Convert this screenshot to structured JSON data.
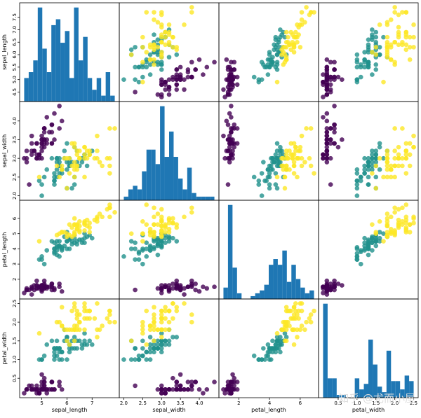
{
  "chart_data": {
    "type": "scatter_matrix",
    "variables": [
      {
        "label": "sepal_length",
        "lim": [
          4.12,
          8.08
        ],
        "xticks": [
          5,
          6,
          7
        ],
        "yticks": [
          4.5,
          {
            "value": 5,
            "label": "5.0"
          },
          5.5,
          {
            "value": 6,
            "label": "6.0"
          },
          6.5,
          {
            "value": 7,
            "label": "7.0"
          },
          7.5
        ]
      },
      {
        "label": "sepal_width",
        "lim": [
          1.88,
          4.52
        ],
        "xticks": [
          {
            "value": 2,
            "label": "2.0"
          },
          2.5,
          {
            "value": 3,
            "label": "3.0"
          },
          3.5,
          {
            "value": 4,
            "label": "4.0"
          }
        ],
        "yticks": [
          {
            "value": 2,
            "label": "2.0"
          },
          2.5,
          {
            "value": 3,
            "label": "3.0"
          },
          3.5,
          {
            "value": 4,
            "label": "4.0"
          }
        ]
      },
      {
        "label": "petal_length",
        "lim": [
          0.705,
          7.195
        ],
        "xticks": [
          2,
          4,
          6
        ],
        "yticks": [
          2,
          3,
          4,
          5,
          6
        ]
      },
      {
        "label": "petal_width",
        "lim": [
          -0.02,
          2.62
        ],
        "xticks": [
          0.5,
          {
            "value": 1,
            "label": "1.0"
          },
          1.5,
          {
            "value": 2,
            "label": "2.0"
          },
          2.5
        ],
        "yticks": [
          0.5,
          {
            "value": 1,
            "label": "1.0"
          },
          1.5,
          {
            "value": 2,
            "label": "2.0"
          },
          2.5
        ]
      }
    ],
    "hist_color": "#1f77b4",
    "hist_bins": 20,
    "series": [
      {
        "color": "#440154",
        "data": [
          [
            5.1,
            3.5,
            1.4,
            0.2
          ],
          [
            4.9,
            3.0,
            1.4,
            0.2
          ],
          [
            4.7,
            3.2,
            1.3,
            0.2
          ],
          [
            4.6,
            3.1,
            1.5,
            0.2
          ],
          [
            5.0,
            3.6,
            1.4,
            0.2
          ],
          [
            5.4,
            3.9,
            1.7,
            0.4
          ],
          [
            4.6,
            3.4,
            1.4,
            0.3
          ],
          [
            5.0,
            3.4,
            1.5,
            0.2
          ],
          [
            4.4,
            2.9,
            1.4,
            0.2
          ],
          [
            4.9,
            3.1,
            1.5,
            0.1
          ],
          [
            5.4,
            3.7,
            1.5,
            0.2
          ],
          [
            4.8,
            3.4,
            1.6,
            0.2
          ],
          [
            4.8,
            3.0,
            1.4,
            0.1
          ],
          [
            4.3,
            3.0,
            1.1,
            0.1
          ],
          [
            5.8,
            4.0,
            1.2,
            0.2
          ],
          [
            5.7,
            4.4,
            1.5,
            0.4
          ],
          [
            5.4,
            3.9,
            1.3,
            0.4
          ],
          [
            5.1,
            3.5,
            1.4,
            0.3
          ],
          [
            5.7,
            3.8,
            1.7,
            0.3
          ],
          [
            5.1,
            3.8,
            1.5,
            0.3
          ],
          [
            5.4,
            3.4,
            1.7,
            0.2
          ],
          [
            5.1,
            3.7,
            1.5,
            0.4
          ],
          [
            4.6,
            3.6,
            1.0,
            0.2
          ],
          [
            5.1,
            3.3,
            1.7,
            0.5
          ],
          [
            4.8,
            3.4,
            1.9,
            0.2
          ],
          [
            5.0,
            3.0,
            1.6,
            0.2
          ],
          [
            5.0,
            3.4,
            1.6,
            0.4
          ],
          [
            5.2,
            3.5,
            1.5,
            0.2
          ],
          [
            5.2,
            3.4,
            1.4,
            0.2
          ],
          [
            4.7,
            3.2,
            1.6,
            0.2
          ],
          [
            4.8,
            3.1,
            1.6,
            0.2
          ],
          [
            5.4,
            3.4,
            1.5,
            0.4
          ],
          [
            5.2,
            4.1,
            1.5,
            0.1
          ],
          [
            5.5,
            4.2,
            1.4,
            0.2
          ],
          [
            4.9,
            3.1,
            1.5,
            0.1
          ],
          [
            5.0,
            3.2,
            1.2,
            0.2
          ],
          [
            5.5,
            3.5,
            1.3,
            0.2
          ],
          [
            4.9,
            3.1,
            1.5,
            0.1
          ],
          [
            4.4,
            3.0,
            1.3,
            0.2
          ],
          [
            5.1,
            3.4,
            1.5,
            0.2
          ],
          [
            5.0,
            3.5,
            1.3,
            0.3
          ],
          [
            4.5,
            2.3,
            1.3,
            0.3
          ],
          [
            4.4,
            3.2,
            1.3,
            0.2
          ],
          [
            5.0,
            3.5,
            1.6,
            0.6
          ],
          [
            5.1,
            3.8,
            1.9,
            0.4
          ],
          [
            4.8,
            3.0,
            1.4,
            0.3
          ],
          [
            5.1,
            3.8,
            1.6,
            0.2
          ],
          [
            4.6,
            3.2,
            1.4,
            0.2
          ],
          [
            5.3,
            3.7,
            1.5,
            0.2
          ],
          [
            5.0,
            3.3,
            1.4,
            0.2
          ]
        ]
      },
      {
        "color": "#21918c",
        "data": [
          [
            7.0,
            3.2,
            4.7,
            1.4
          ],
          [
            6.4,
            3.2,
            4.5,
            1.5
          ],
          [
            6.9,
            3.1,
            4.9,
            1.5
          ],
          [
            5.5,
            2.3,
            4.0,
            1.3
          ],
          [
            6.5,
            2.8,
            4.6,
            1.5
          ],
          [
            5.7,
            2.8,
            4.5,
            1.3
          ],
          [
            6.3,
            3.3,
            4.7,
            1.6
          ],
          [
            4.9,
            2.4,
            3.3,
            1.0
          ],
          [
            6.6,
            2.9,
            4.6,
            1.3
          ],
          [
            5.2,
            2.7,
            3.9,
            1.4
          ],
          [
            5.0,
            2.0,
            3.5,
            1.0
          ],
          [
            5.9,
            3.0,
            4.2,
            1.5
          ],
          [
            6.0,
            2.2,
            4.0,
            1.0
          ],
          [
            6.1,
            2.9,
            4.7,
            1.4
          ],
          [
            5.6,
            2.9,
            3.6,
            1.3
          ],
          [
            6.7,
            3.1,
            4.4,
            1.4
          ],
          [
            5.6,
            3.0,
            4.5,
            1.5
          ],
          [
            5.8,
            2.7,
            4.1,
            1.0
          ],
          [
            6.2,
            2.2,
            4.5,
            1.5
          ],
          [
            5.6,
            2.5,
            3.9,
            1.1
          ],
          [
            5.9,
            3.2,
            4.8,
            1.8
          ],
          [
            6.1,
            2.8,
            4.0,
            1.3
          ],
          [
            6.3,
            2.5,
            4.9,
            1.5
          ],
          [
            6.1,
            2.8,
            4.7,
            1.2
          ],
          [
            6.4,
            2.9,
            4.3,
            1.3
          ],
          [
            6.6,
            3.0,
            4.4,
            1.4
          ],
          [
            6.8,
            2.8,
            4.8,
            1.4
          ],
          [
            6.7,
            3.0,
            5.0,
            1.7
          ],
          [
            6.0,
            2.9,
            4.5,
            1.5
          ],
          [
            5.7,
            2.6,
            3.5,
            1.0
          ],
          [
            5.5,
            2.4,
            3.8,
            1.1
          ],
          [
            5.5,
            2.4,
            3.7,
            1.0
          ],
          [
            5.8,
            2.7,
            3.9,
            1.2
          ],
          [
            6.0,
            2.7,
            5.1,
            1.6
          ],
          [
            5.4,
            3.0,
            4.5,
            1.5
          ],
          [
            6.0,
            3.4,
            4.5,
            1.6
          ],
          [
            6.7,
            3.1,
            4.7,
            1.5
          ],
          [
            6.3,
            2.3,
            4.4,
            1.3
          ],
          [
            5.6,
            3.0,
            4.1,
            1.3
          ],
          [
            5.5,
            2.5,
            4.0,
            1.3
          ],
          [
            5.5,
            2.6,
            4.4,
            1.2
          ],
          [
            6.1,
            3.0,
            4.6,
            1.4
          ],
          [
            5.8,
            2.6,
            4.0,
            1.2
          ],
          [
            5.0,
            2.3,
            3.3,
            1.0
          ],
          [
            5.6,
            2.7,
            4.2,
            1.3
          ],
          [
            5.7,
            3.0,
            4.2,
            1.2
          ],
          [
            5.7,
            2.9,
            4.2,
            1.3
          ],
          [
            6.2,
            2.9,
            4.3,
            1.3
          ],
          [
            5.1,
            2.5,
            3.0,
            1.1
          ],
          [
            5.7,
            2.8,
            4.1,
            1.3
          ]
        ]
      },
      {
        "color": "#fde725",
        "data": [
          [
            6.3,
            3.3,
            6.0,
            2.5
          ],
          [
            5.8,
            2.7,
            5.1,
            1.9
          ],
          [
            7.1,
            3.0,
            5.9,
            2.1
          ],
          [
            6.3,
            2.9,
            5.6,
            1.8
          ],
          [
            6.5,
            3.0,
            5.8,
            2.2
          ],
          [
            7.6,
            3.0,
            6.6,
            2.1
          ],
          [
            4.9,
            2.5,
            4.5,
            1.7
          ],
          [
            7.3,
            2.9,
            6.3,
            1.8
          ],
          [
            6.7,
            2.5,
            5.8,
            1.8
          ],
          [
            7.2,
            3.6,
            6.1,
            2.5
          ],
          [
            6.5,
            3.2,
            5.1,
            2.0
          ],
          [
            6.4,
            2.7,
            5.3,
            1.9
          ],
          [
            6.8,
            3.0,
            5.5,
            2.1
          ],
          [
            5.7,
            2.5,
            5.0,
            2.0
          ],
          [
            5.8,
            2.8,
            5.1,
            2.4
          ],
          [
            6.4,
            3.2,
            5.3,
            2.3
          ],
          [
            6.5,
            3.0,
            5.5,
            1.8
          ],
          [
            7.7,
            3.8,
            6.7,
            2.2
          ],
          [
            7.7,
            2.6,
            6.9,
            2.3
          ],
          [
            6.0,
            2.2,
            5.0,
            1.5
          ],
          [
            6.9,
            3.2,
            5.7,
            2.3
          ],
          [
            5.6,
            2.8,
            4.9,
            2.0
          ],
          [
            7.7,
            2.8,
            6.7,
            2.0
          ],
          [
            6.3,
            2.7,
            4.9,
            1.8
          ],
          [
            6.7,
            3.3,
            5.7,
            2.1
          ],
          [
            7.2,
            3.2,
            6.0,
            1.8
          ],
          [
            6.2,
            2.8,
            4.8,
            1.8
          ],
          [
            6.1,
            3.0,
            4.9,
            1.8
          ],
          [
            6.4,
            2.8,
            5.6,
            2.1
          ],
          [
            7.2,
            3.0,
            5.8,
            1.6
          ],
          [
            7.4,
            2.8,
            6.1,
            1.9
          ],
          [
            7.9,
            3.8,
            6.4,
            2.0
          ],
          [
            6.4,
            2.8,
            5.6,
            2.2
          ],
          [
            6.3,
            2.8,
            5.1,
            1.5
          ],
          [
            6.1,
            2.6,
            5.6,
            1.4
          ],
          [
            7.7,
            3.0,
            6.1,
            2.3
          ],
          [
            6.3,
            3.4,
            5.6,
            2.4
          ],
          [
            6.4,
            3.1,
            5.5,
            1.8
          ],
          [
            6.0,
            3.0,
            4.8,
            1.8
          ],
          [
            6.9,
            3.1,
            5.4,
            2.1
          ],
          [
            6.7,
            3.1,
            5.6,
            2.4
          ],
          [
            6.9,
            3.1,
            5.1,
            2.3
          ],
          [
            5.8,
            2.7,
            5.1,
            1.9
          ],
          [
            6.8,
            3.2,
            5.9,
            2.3
          ],
          [
            6.7,
            3.3,
            5.7,
            2.5
          ],
          [
            6.7,
            3.0,
            5.2,
            2.3
          ],
          [
            6.3,
            2.5,
            5.0,
            1.9
          ],
          [
            6.5,
            3.0,
            5.2,
            2.0
          ],
          [
            6.2,
            3.4,
            5.4,
            2.3
          ],
          [
            5.9,
            3.0,
            5.1,
            1.8
          ]
        ]
      }
    ],
    "watermark": "知乎 @尤而小屋"
  }
}
